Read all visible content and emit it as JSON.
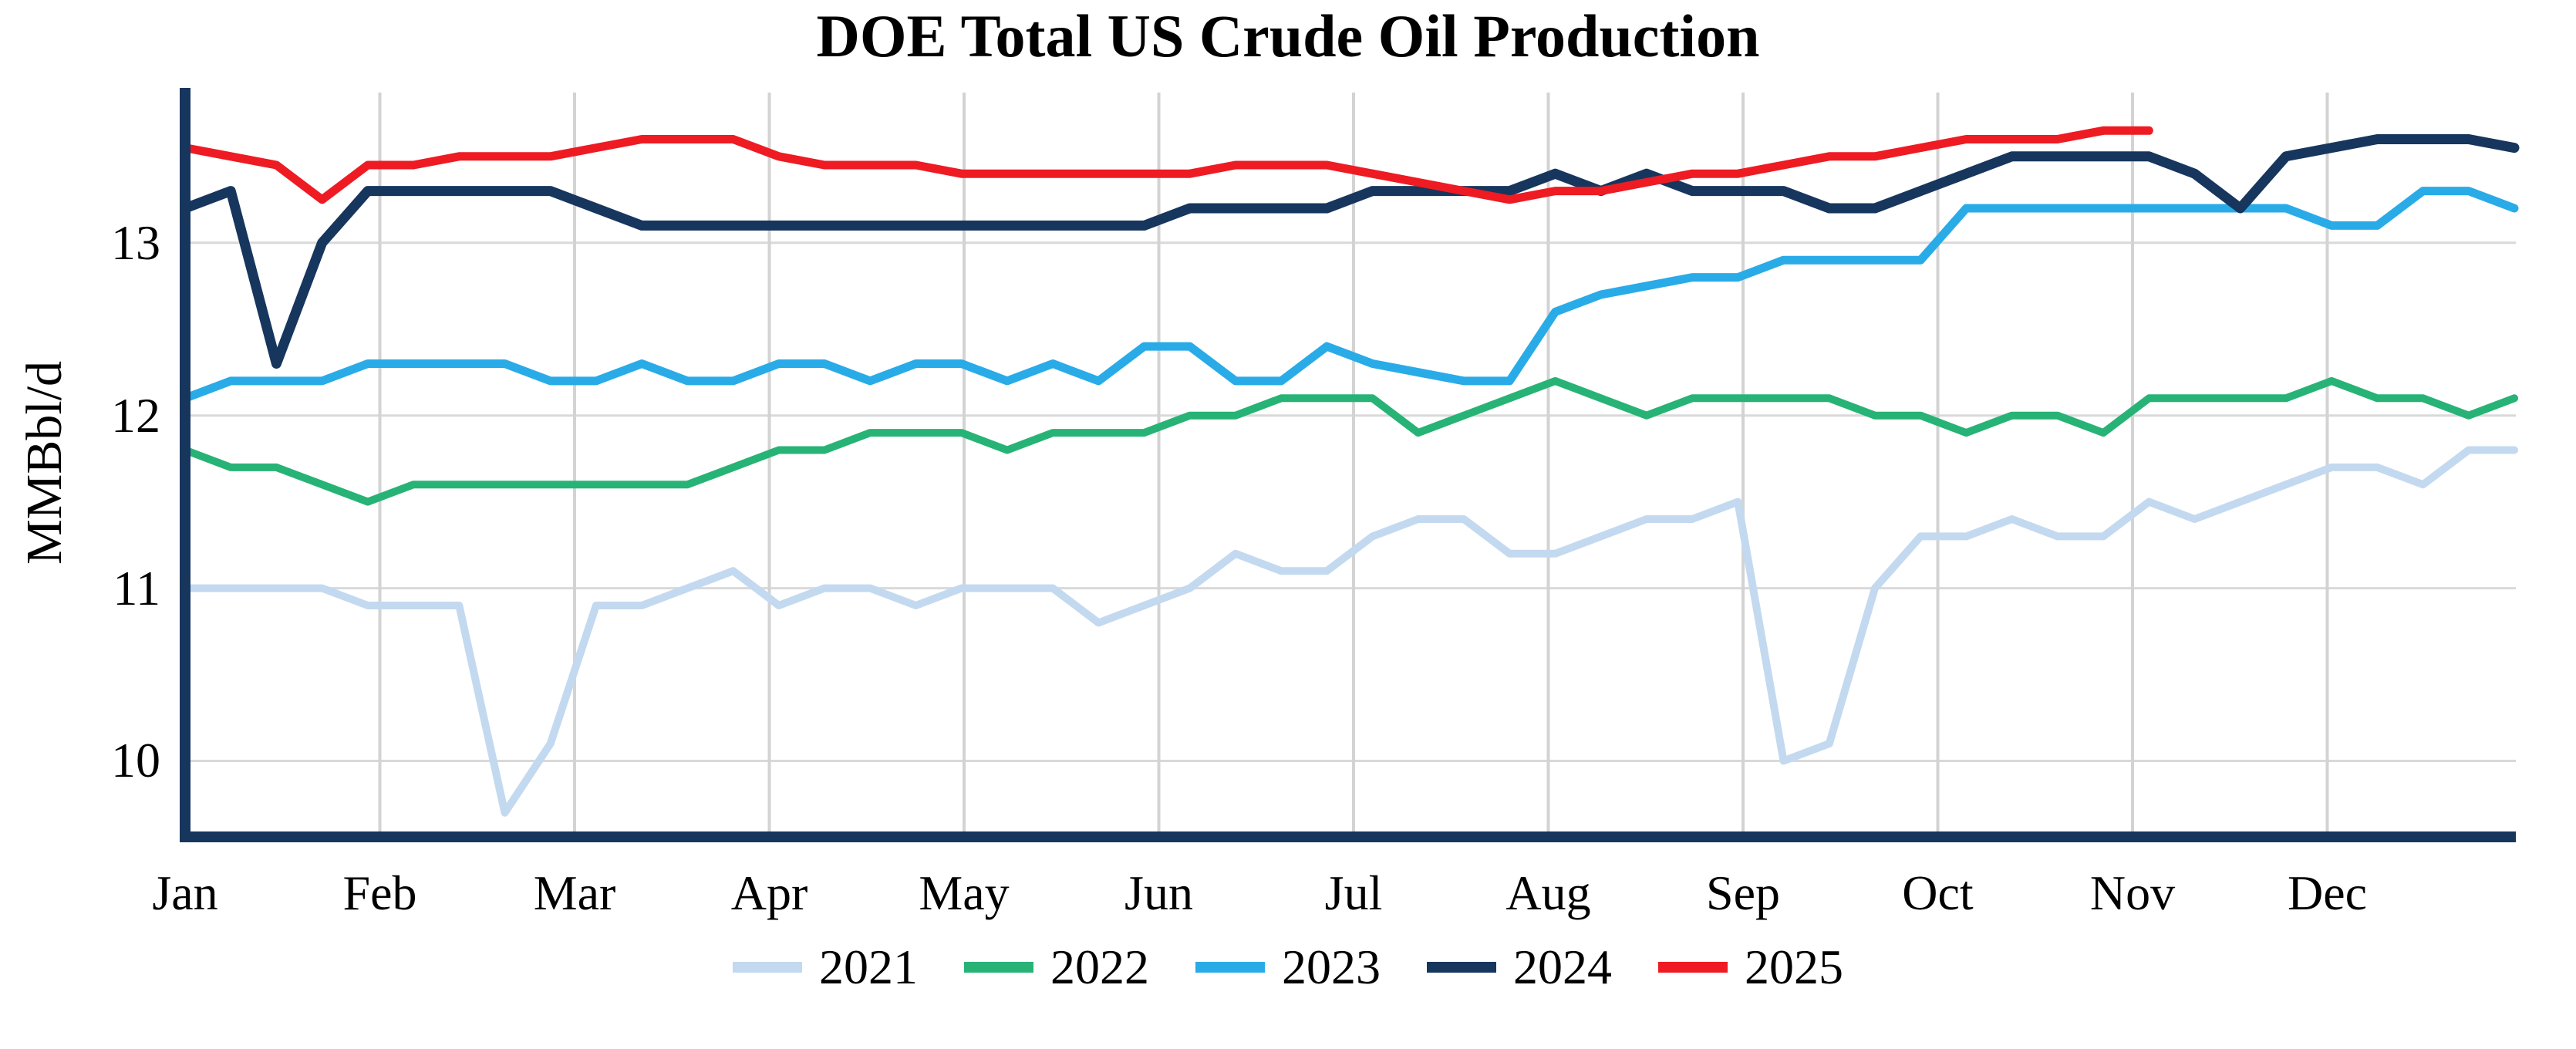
{
  "title": "DOE Total US Crude Oil Production",
  "y_axis": {
    "label": "MMBbl/d",
    "tick_labels": [
      "13",
      "12",
      "11",
      "10"
    ]
  },
  "x_axis": {
    "month_labels": [
      "Jan",
      "Feb",
      "Mar",
      "Apr",
      "May",
      "Jun",
      "Jul",
      "Aug",
      "Sep",
      "Oct",
      "Nov",
      "Dec"
    ]
  },
  "legend": {
    "entries": [
      "2021",
      "2022",
      "2023",
      "2024",
      "2025"
    ]
  },
  "chart_data": {
    "type": "line",
    "title": "DOE Total US Crude Oil Production",
    "xlabel": "",
    "ylabel": "MMBbl/d",
    "x_unit": "week",
    "x_tick_labels": [
      "Jan",
      "Feb",
      "Mar",
      "Apr",
      "May",
      "Jun",
      "Jul",
      "Aug",
      "Sep",
      "Oct",
      "Nov",
      "Dec"
    ],
    "y_ticks": [
      10,
      11,
      12,
      13
    ],
    "ylim": [
      9.56,
      13.87
    ],
    "weeks_per_year": 52,
    "grid": true,
    "legend_position": "bottom",
    "background_color": "#FFFFFF",
    "gridline_color": "#D9D9D9",
    "axis_color": "#17365D",
    "series": [
      {
        "name": "2021",
        "color": "#C3D9F0",
        "line_width": 10,
        "values": [
          11.0,
          11.0,
          11.0,
          11.0,
          10.9,
          10.9,
          10.9,
          9.7,
          10.1,
          10.9,
          10.9,
          11.0,
          11.1,
          10.9,
          11.0,
          11.0,
          10.9,
          11.0,
          11.0,
          11.0,
          10.8,
          10.9,
          11.0,
          11.2,
          11.1,
          11.1,
          11.3,
          11.4,
          11.4,
          11.2,
          11.2,
          11.3,
          11.4,
          11.4,
          11.5,
          10.0,
          10.1,
          11.0,
          11.3,
          11.3,
          11.4,
          11.3,
          11.3,
          11.5,
          11.4,
          11.5,
          11.6,
          11.7,
          11.7,
          11.6,
          11.8,
          11.8
        ]
      },
      {
        "name": "2022",
        "color": "#27B376",
        "line_width": 10,
        "values": [
          11.8,
          11.7,
          11.7,
          11.6,
          11.5,
          11.6,
          11.6,
          11.6,
          11.6,
          11.6,
          11.6,
          11.6,
          11.7,
          11.8,
          11.8,
          11.9,
          11.9,
          11.9,
          11.8,
          11.9,
          11.9,
          11.9,
          12.0,
          12.0,
          12.1,
          12.1,
          12.1,
          11.9,
          12.0,
          12.1,
          12.2,
          12.1,
          12.0,
          12.1,
          12.1,
          12.1,
          12.1,
          12.0,
          12.0,
          11.9,
          12.0,
          12.0,
          11.9,
          12.1,
          12.1,
          12.1,
          12.1,
          12.2,
          12.1,
          12.1,
          12.0,
          12.1
        ]
      },
      {
        "name": "2023",
        "color": "#29ABE8",
        "line_width": 11,
        "values": [
          12.1,
          12.2,
          12.2,
          12.2,
          12.3,
          12.3,
          12.3,
          12.3,
          12.2,
          12.2,
          12.3,
          12.2,
          12.2,
          12.3,
          12.3,
          12.2,
          12.3,
          12.3,
          12.2,
          12.3,
          12.2,
          12.4,
          12.4,
          12.2,
          12.2,
          12.4,
          12.3,
          12.25,
          12.2,
          12.2,
          12.6,
          12.7,
          12.75,
          12.8,
          12.8,
          12.9,
          12.9,
          12.9,
          12.9,
          13.2,
          13.2,
          13.2,
          13.2,
          13.2,
          13.2,
          13.2,
          13.2,
          13.1,
          13.1,
          13.3,
          13.3,
          13.2
        ]
      },
      {
        "name": "2024",
        "color": "#17365D",
        "line_width": 13,
        "values": [
          13.2,
          13.3,
          12.3,
          13.0,
          13.3,
          13.3,
          13.3,
          13.3,
          13.3,
          13.2,
          13.1,
          13.1,
          13.1,
          13.1,
          13.1,
          13.1,
          13.1,
          13.1,
          13.1,
          13.1,
          13.1,
          13.1,
          13.2,
          13.2,
          13.2,
          13.2,
          13.3,
          13.3,
          13.3,
          13.3,
          13.4,
          13.3,
          13.4,
          13.3,
          13.3,
          13.3,
          13.2,
          13.2,
          13.3,
          13.4,
          13.5,
          13.5,
          13.5,
          13.5,
          13.4,
          13.2,
          13.5,
          13.55,
          13.6,
          13.6,
          13.6,
          13.55
        ]
      },
      {
        "name": "2025",
        "color": "#EE1B23",
        "line_width": 11,
        "values": [
          13.55,
          13.5,
          13.45,
          13.25,
          13.45,
          13.45,
          13.5,
          13.5,
          13.5,
          13.55,
          13.6,
          13.6,
          13.6,
          13.5,
          13.45,
          13.45,
          13.45,
          13.4,
          13.4,
          13.4,
          13.4,
          13.4,
          13.4,
          13.45,
          13.45,
          13.45,
          13.4,
          13.35,
          13.3,
          13.25,
          13.3,
          13.3,
          13.35,
          13.4,
          13.4,
          13.45,
          13.5,
          13.5,
          13.55,
          13.6,
          13.6,
          13.6,
          13.65,
          13.65
        ]
      }
    ]
  }
}
